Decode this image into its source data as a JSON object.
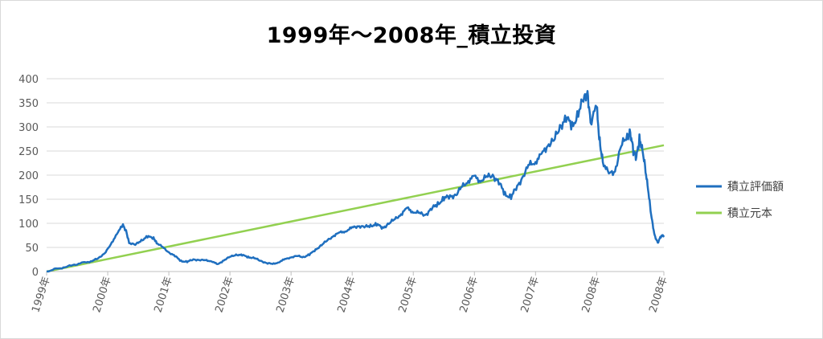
{
  "chart_data": {
    "type": "line",
    "title": "1999年～2008年_積立投資",
    "xlabel": "",
    "ylabel": "",
    "ylim": [
      0,
      400
    ],
    "yticks": [
      "0",
      "50",
      "100",
      "150",
      "200",
      "250",
      "300",
      "350",
      "400"
    ],
    "xtick_labels": [
      "1999年",
      "2000年",
      "2001年",
      "2002年",
      "2003年",
      "2004年",
      "2005年",
      "2006年",
      "2007年",
      "2008年",
      "2008年"
    ],
    "grid": "horizontal",
    "legend_position": "right",
    "series": [
      {
        "name": "積立評価額",
        "color": "#1f6fbf",
        "points": [
          [
            0.0,
            0
          ],
          [
            0.15,
            5
          ],
          [
            0.3,
            9
          ],
          [
            0.45,
            14
          ],
          [
            0.6,
            18
          ],
          [
            0.75,
            22
          ],
          [
            0.85,
            28
          ],
          [
            0.95,
            38
          ],
          [
            1.05,
            55
          ],
          [
            1.15,
            80
          ],
          [
            1.25,
            95
          ],
          [
            1.3,
            85
          ],
          [
            1.35,
            60
          ],
          [
            1.45,
            55
          ],
          [
            1.55,
            65
          ],
          [
            1.65,
            72
          ],
          [
            1.75,
            70
          ],
          [
            1.8,
            60
          ],
          [
            1.9,
            50
          ],
          [
            2.0,
            40
          ],
          [
            2.1,
            32
          ],
          [
            2.2,
            22
          ],
          [
            2.3,
            20
          ],
          [
            2.4,
            25
          ],
          [
            2.5,
            24
          ],
          [
            2.6,
            23
          ],
          [
            2.7,
            22
          ],
          [
            2.8,
            14
          ],
          [
            2.9,
            24
          ],
          [
            3.0,
            30
          ],
          [
            3.1,
            35
          ],
          [
            3.2,
            34
          ],
          [
            3.3,
            30
          ],
          [
            3.4,
            28
          ],
          [
            3.5,
            22
          ],
          [
            3.6,
            18
          ],
          [
            3.7,
            15
          ],
          [
            3.8,
            20
          ],
          [
            3.9,
            25
          ],
          [
            4.0,
            30
          ],
          [
            4.1,
            32
          ],
          [
            4.2,
            30
          ],
          [
            4.3,
            35
          ],
          [
            4.4,
            45
          ],
          [
            4.5,
            55
          ],
          [
            4.6,
            65
          ],
          [
            4.7,
            75
          ],
          [
            4.8,
            80
          ],
          [
            4.9,
            85
          ],
          [
            5.0,
            90
          ],
          [
            5.1,
            95
          ],
          [
            5.2,
            92
          ],
          [
            5.3,
            95
          ],
          [
            5.4,
            98
          ],
          [
            5.5,
            90
          ],
          [
            5.6,
            100
          ],
          [
            5.7,
            108
          ],
          [
            5.8,
            120
          ],
          [
            5.9,
            130
          ],
          [
            6.0,
            125
          ],
          [
            6.1,
            120
          ],
          [
            6.2,
            118
          ],
          [
            6.3,
            130
          ],
          [
            6.4,
            140
          ],
          [
            6.5,
            152
          ],
          [
            6.6,
            155
          ],
          [
            6.7,
            160
          ],
          [
            6.8,
            175
          ],
          [
            6.9,
            190
          ],
          [
            7.0,
            195
          ],
          [
            7.1,
            190
          ],
          [
            7.2,
            195
          ],
          [
            7.3,
            200
          ],
          [
            7.4,
            185
          ],
          [
            7.5,
            160
          ],
          [
            7.6,
            155
          ],
          [
            7.7,
            175
          ],
          [
            7.8,
            200
          ],
          [
            7.9,
            220
          ],
          [
            8.0,
            230
          ],
          [
            8.1,
            240
          ],
          [
            8.2,
            265
          ],
          [
            8.3,
            270
          ],
          [
            8.4,
            300
          ],
          [
            8.5,
            320
          ],
          [
            8.6,
            300
          ],
          [
            8.7,
            330
          ],
          [
            8.8,
            360
          ],
          [
            8.85,
            375
          ],
          [
            8.9,
            310
          ],
          [
            9.0,
            340
          ],
          [
            9.05,
            270
          ],
          [
            9.1,
            230
          ],
          [
            9.2,
            200
          ],
          [
            9.3,
            210
          ],
          [
            9.4,
            260
          ],
          [
            9.5,
            280
          ],
          [
            9.55,
            290
          ],
          [
            9.6,
            250
          ],
          [
            9.65,
            235
          ],
          [
            9.7,
            275
          ],
          [
            9.75,
            255
          ],
          [
            9.8,
            210
          ],
          [
            9.85,
            160
          ],
          [
            9.9,
            110
          ],
          [
            9.95,
            75
          ],
          [
            10.0,
            60
          ],
          [
            10.05,
            72
          ],
          [
            10.1,
            75
          ]
        ]
      },
      {
        "name": "積立元本",
        "color": "#92d050",
        "points": [
          [
            0.0,
            0
          ],
          [
            10.1,
            262
          ]
        ]
      }
    ]
  }
}
